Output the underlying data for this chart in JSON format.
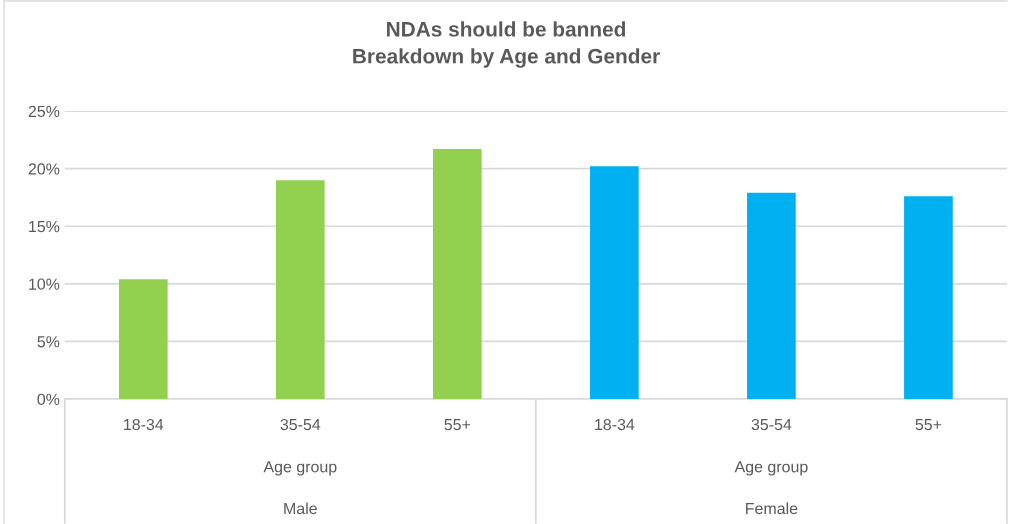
{
  "chart_data": {
    "type": "bar",
    "title": "NDAs should be banned\nBreakdown by Age and Gender",
    "categories": [
      "18-34",
      "35-54",
      "55+",
      "18-34",
      "35-54",
      "55+"
    ],
    "values": [
      10.4,
      19.0,
      21.7,
      20.2,
      17.9,
      17.6
    ],
    "colors": [
      "#92d050",
      "#92d050",
      "#92d050",
      "#00b0f0",
      "#00b0f0",
      "#00b0f0"
    ],
    "annotations": [
      "Age group",
      "Age group",
      "Male",
      "Female"
    ],
    "ylim": [
      0,
      25
    ],
    "yticks": [
      {
        "value": 0,
        "label": "0%"
      },
      {
        "value": 5,
        "label": "5%"
      },
      {
        "value": 10,
        "label": "10%"
      },
      {
        "value": 15,
        "label": "15%"
      },
      {
        "value": 20,
        "label": "20%"
      },
      {
        "value": 25,
        "label": "25%"
      }
    ],
    "grid": "y",
    "legend": false
  }
}
